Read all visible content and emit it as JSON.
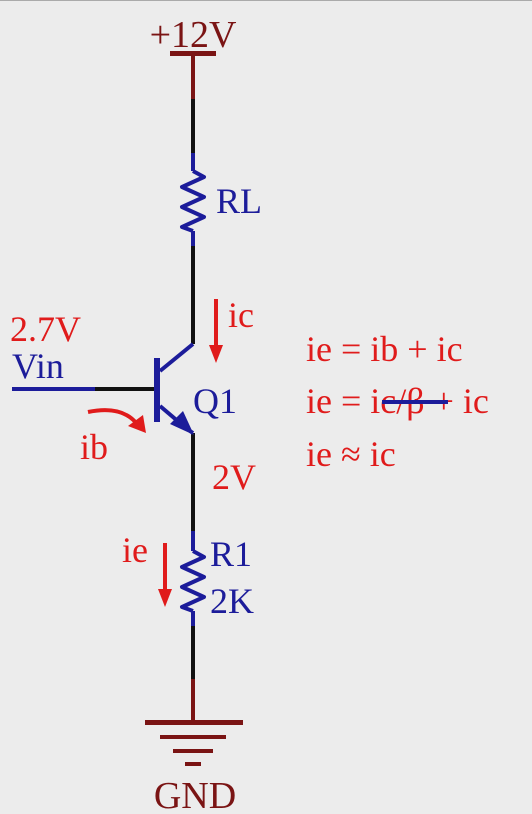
{
  "diagram": {
    "supply_label": "+12V",
    "ground_label": "GND",
    "load_resistor": {
      "ref": "RL"
    },
    "transistor": {
      "ref": "Q1"
    },
    "emitter_resistor": {
      "ref": "R1",
      "value": "2K"
    },
    "input": {
      "voltage": "2.7V",
      "label": "Vin"
    },
    "emitter_voltage": "2V",
    "currents": {
      "collector": "ic",
      "base": "ib",
      "emitter": "ie"
    },
    "equations": {
      "line1": "ie = ib + ic",
      "line2_prefix": "ie = ",
      "line2_struck": "ic/β",
      "line2_suffix": " + ic",
      "line3": "ie ≈ ic"
    },
    "colors": {
      "wire": "#111111",
      "component": "#1c1c9a",
      "annotation": "#e01b1b",
      "power": "#7a1414"
    }
  }
}
